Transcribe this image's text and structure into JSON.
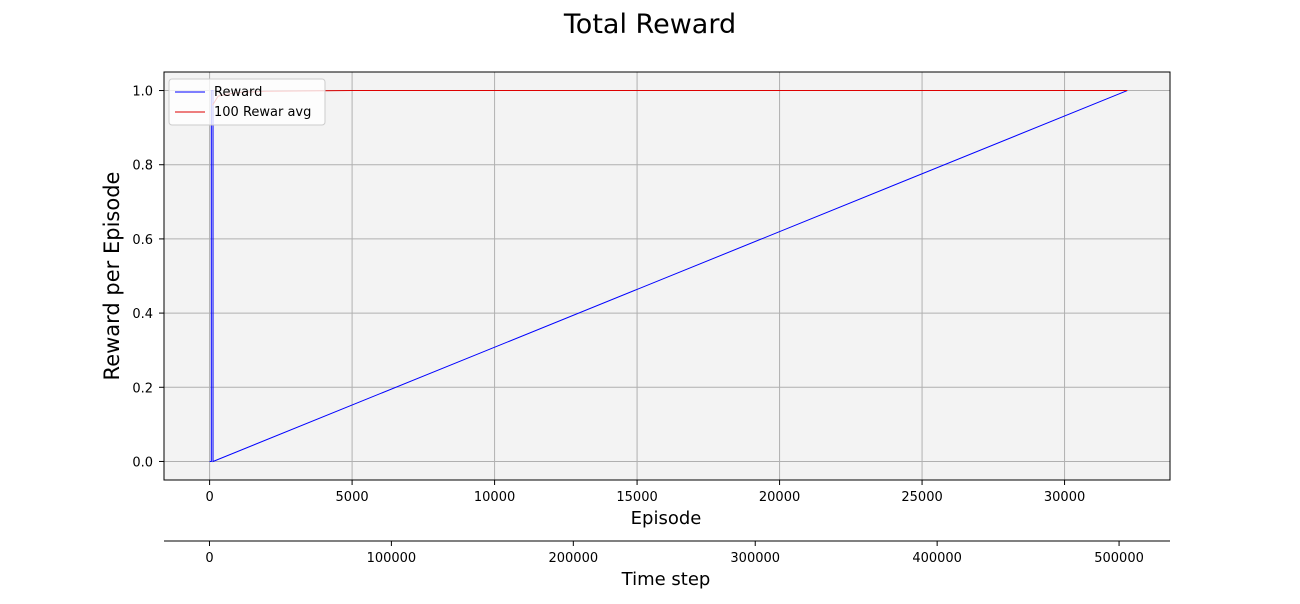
{
  "chart_data": {
    "type": "line",
    "title": "Total Reward",
    "xlabel": "Episode",
    "ylabel": "Reward per Episode",
    "secondary_xlabel": "Time step",
    "xlim": [
      -1600,
      33700
    ],
    "ylim": [
      -0.05,
      1.05
    ],
    "secondary_xlim": [
      -25000,
      528000
    ],
    "xticks": [
      0,
      5000,
      10000,
      15000,
      20000,
      25000,
      30000
    ],
    "xtick_labels": [
      "0",
      "5000",
      "10000",
      "15000",
      "20000",
      "25000",
      "30000"
    ],
    "yticks": [
      0.0,
      0.2,
      0.4,
      0.6,
      0.8,
      1.0
    ],
    "ytick_labels": [
      "0.0",
      "0.2",
      "0.4",
      "0.6",
      "0.8",
      "1.0"
    ],
    "secondary_xticks": [
      0,
      100000,
      200000,
      300000,
      400000,
      500000
    ],
    "secondary_xtick_labels": [
      "0",
      "100000",
      "200000",
      "300000",
      "400000",
      "500000"
    ],
    "grid": true,
    "legend_position": "top-left",
    "plot_background": "#f3f3f3",
    "series": [
      {
        "name": "Reward",
        "color": "#0000ff",
        "x": [
          0,
          60,
          60,
          120,
          120,
          32200
        ],
        "y": [
          0.0,
          0.0,
          1.0,
          1.0,
          0.0,
          1.0
        ]
      },
      {
        "name": "100 Rewar avg",
        "color": "#dd0000",
        "x": [
          100,
          300,
          600,
          1000,
          2000,
          5000,
          10000,
          15000,
          20000,
          25000,
          30000,
          32200
        ],
        "y": [
          0.96,
          0.985,
          0.99,
          0.995,
          0.998,
          1.0,
          1.0,
          1.0,
          1.0,
          1.0,
          1.0,
          1.0
        ]
      }
    ]
  }
}
